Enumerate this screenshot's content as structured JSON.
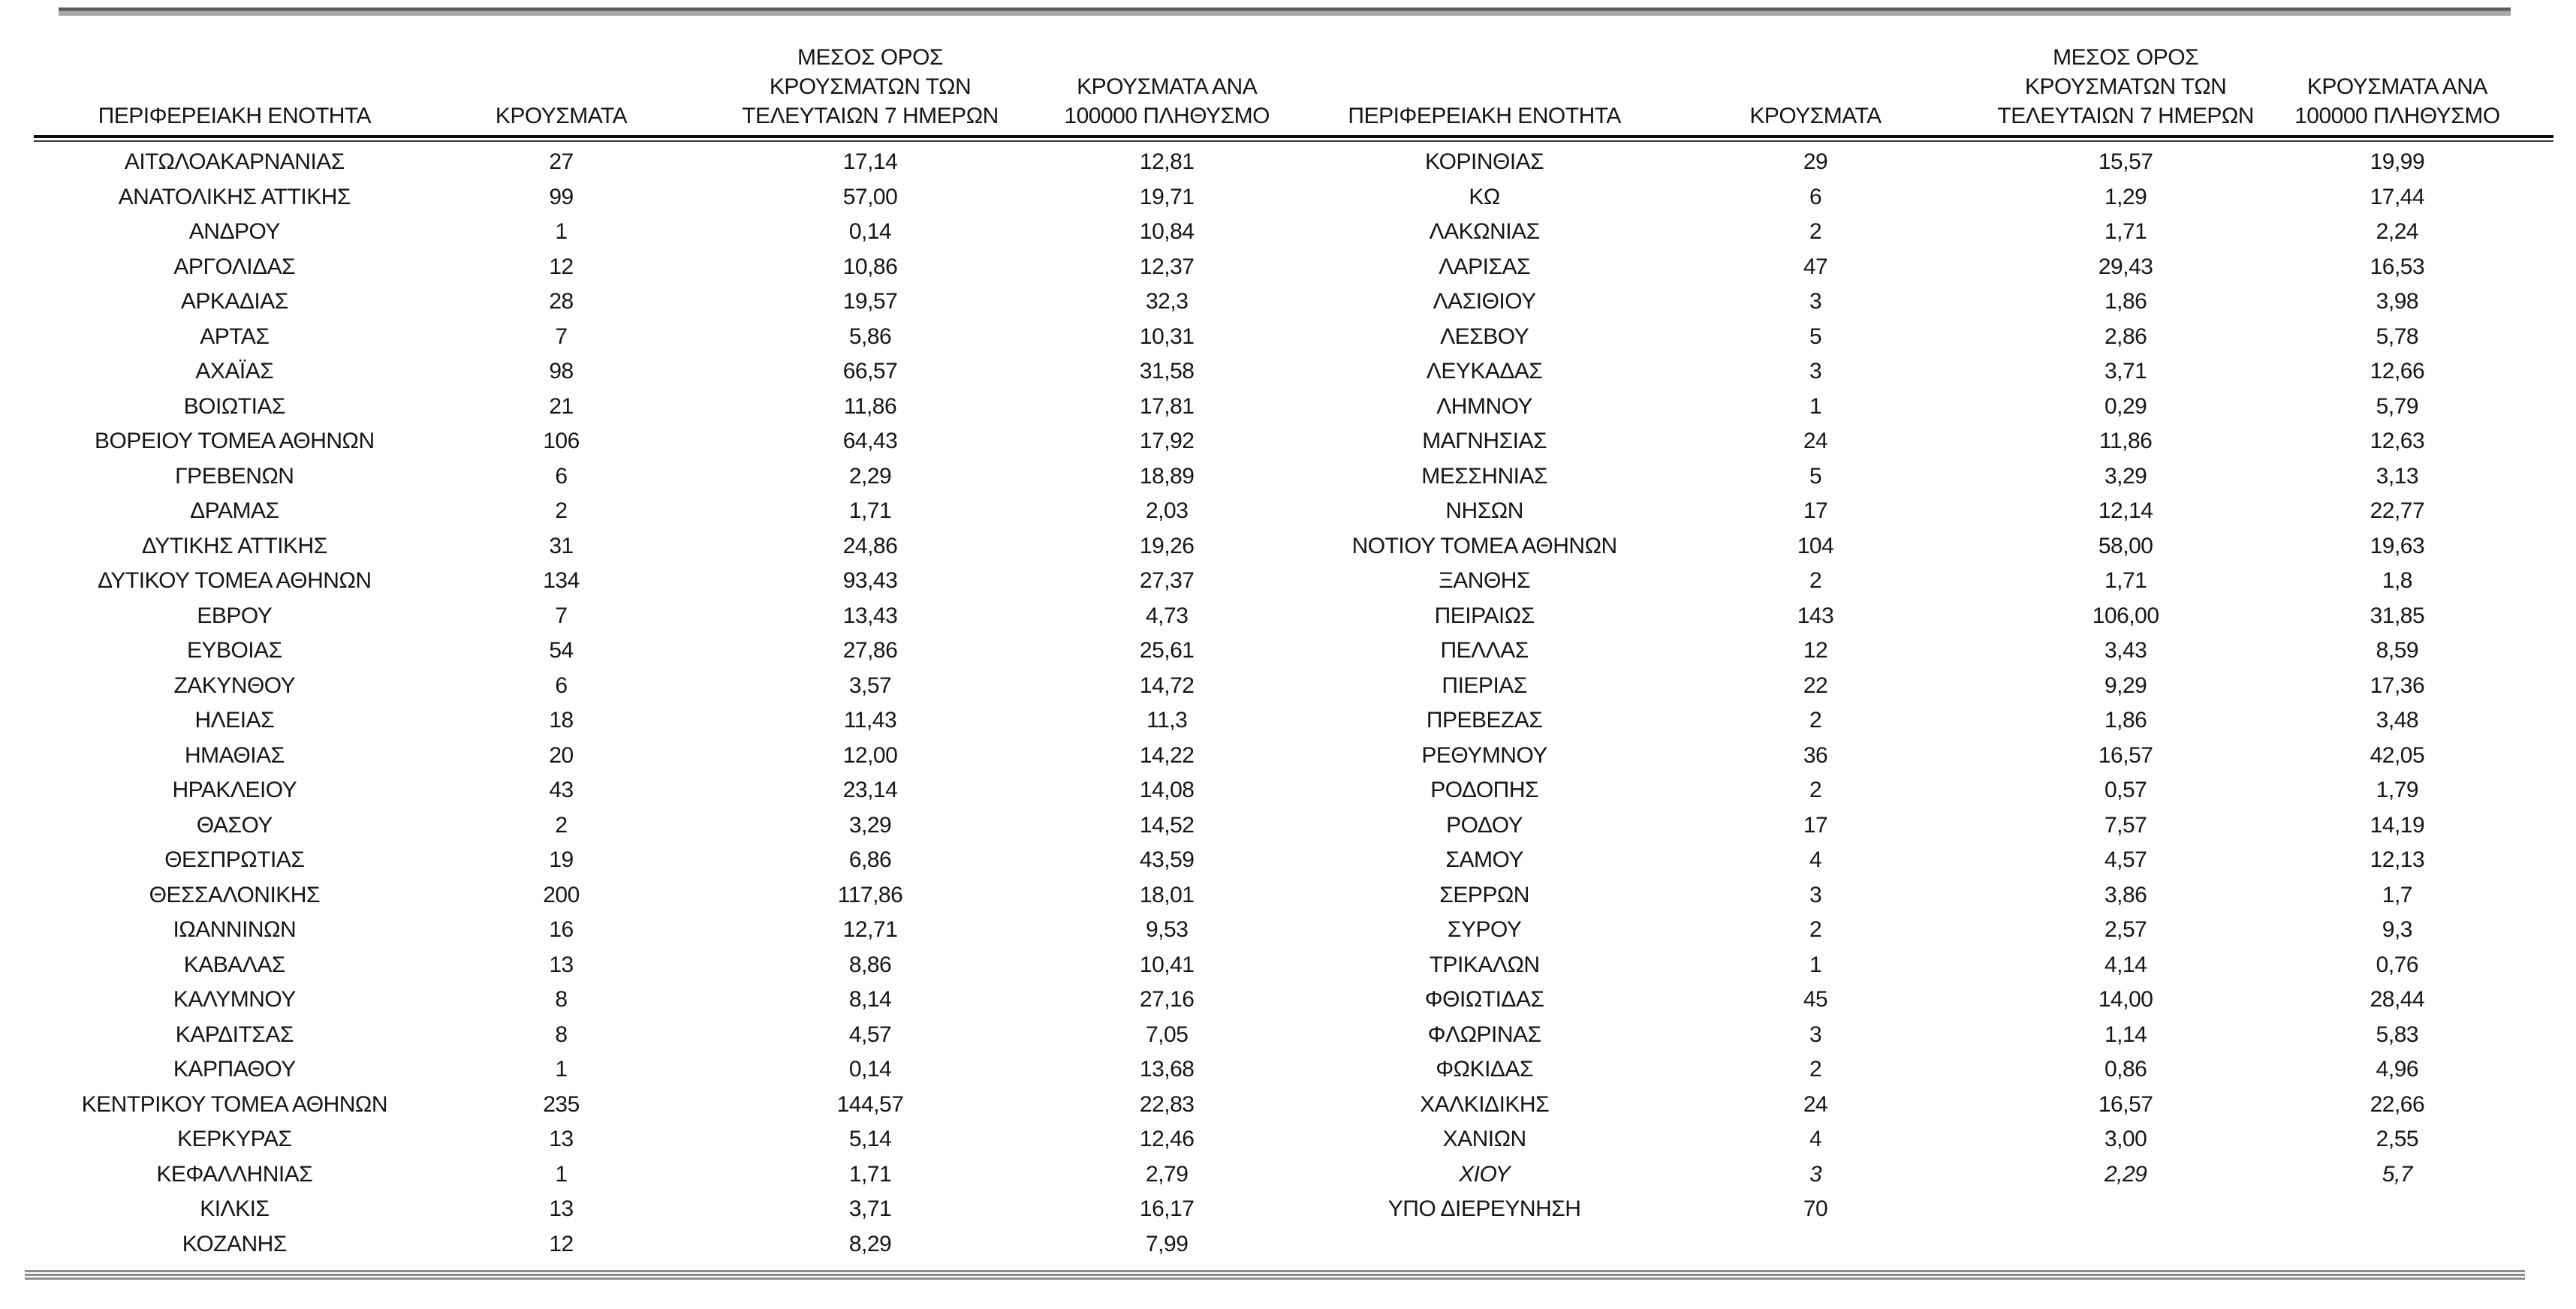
{
  "page": {
    "background_color": "#ffffff",
    "text_color": "#161616",
    "rule_gray_color": "#8e8e8e",
    "rule_black_color": "#0d0d0d"
  },
  "table": {
    "headers": {
      "region": "ΠΕΡΙΦΕΡΕΙΑΚΗ ΕΝΟΤΗΤΑ",
      "cases": "ΚΡΟΥΣΜΑΤΑ",
      "avg7_line1": "ΜΕΣΟΣ ΟΡΟΣ",
      "avg7_line2": "ΚΡΟΥΣΜΑΤΩΝ ΤΩΝ",
      "avg7_line3": "ΤΕΛΕΥΤΑΙΩΝ 7 ΗΜΕΡΩΝ",
      "per100k_line1": "ΚΡΟΥΣΜΑΤΑ ΑΝΑ",
      "per100k_line2": "100000 ΠΛΗΘΥΣΜΟ"
    },
    "left_rows": [
      {
        "name": "ΑΙΤΩΛΟΑΚΑΡΝΑΝΙΑΣ",
        "cases": "27",
        "avg7": "17,14",
        "per100k": "12,81"
      },
      {
        "name": "ΑΝΑΤΟΛΙΚΗΣ ΑΤΤΙΚΗΣ",
        "cases": "99",
        "avg7": "57,00",
        "per100k": "19,71"
      },
      {
        "name": "ΑΝΔΡΟΥ",
        "cases": "1",
        "avg7": "0,14",
        "per100k": "10,84"
      },
      {
        "name": "ΑΡΓΟΛΙΔΑΣ",
        "cases": "12",
        "avg7": "10,86",
        "per100k": "12,37"
      },
      {
        "name": "ΑΡΚΑΔΙΑΣ",
        "cases": "28",
        "avg7": "19,57",
        "per100k": "32,3"
      },
      {
        "name": "ΑΡΤΑΣ",
        "cases": "7",
        "avg7": "5,86",
        "per100k": "10,31"
      },
      {
        "name": "ΑΧΑΪΑΣ",
        "cases": "98",
        "avg7": "66,57",
        "per100k": "31,58"
      },
      {
        "name": "ΒΟΙΩΤΙΑΣ",
        "cases": "21",
        "avg7": "11,86",
        "per100k": "17,81"
      },
      {
        "name": "ΒΟΡΕΙΟΥ ΤΟΜΕΑ ΑΘΗΝΩΝ",
        "cases": "106",
        "avg7": "64,43",
        "per100k": "17,92"
      },
      {
        "name": "ΓΡΕΒΕΝΩΝ",
        "cases": "6",
        "avg7": "2,29",
        "per100k": "18,89"
      },
      {
        "name": "ΔΡΑΜΑΣ",
        "cases": "2",
        "avg7": "1,71",
        "per100k": "2,03"
      },
      {
        "name": "ΔΥΤΙΚΗΣ ΑΤΤΙΚΗΣ",
        "cases": "31",
        "avg7": "24,86",
        "per100k": "19,26"
      },
      {
        "name": "ΔΥΤΙΚΟΥ ΤΟΜΕΑ ΑΘΗΝΩΝ",
        "cases": "134",
        "avg7": "93,43",
        "per100k": "27,37"
      },
      {
        "name": "ΕΒΡΟΥ",
        "cases": "7",
        "avg7": "13,43",
        "per100k": "4,73"
      },
      {
        "name": "ΕΥΒΟΙΑΣ",
        "cases": "54",
        "avg7": "27,86",
        "per100k": "25,61"
      },
      {
        "name": "ΖΑΚΥΝΘΟΥ",
        "cases": "6",
        "avg7": "3,57",
        "per100k": "14,72"
      },
      {
        "name": "ΗΛΕΙΑΣ",
        "cases": "18",
        "avg7": "11,43",
        "per100k": "11,3"
      },
      {
        "name": "ΗΜΑΘΙΑΣ",
        "cases": "20",
        "avg7": "12,00",
        "per100k": "14,22"
      },
      {
        "name": "ΗΡΑΚΛΕΙΟΥ",
        "cases": "43",
        "avg7": "23,14",
        "per100k": "14,08"
      },
      {
        "name": "ΘΑΣΟΥ",
        "cases": "2",
        "avg7": "3,29",
        "per100k": "14,52"
      },
      {
        "name": "ΘΕΣΠΡΩΤΙΑΣ",
        "cases": "19",
        "avg7": "6,86",
        "per100k": "43,59"
      },
      {
        "name": "ΘΕΣΣΑΛΟΝΙΚΗΣ",
        "cases": "200",
        "avg7": "117,86",
        "per100k": "18,01"
      },
      {
        "name": "ΙΩΑΝΝΙΝΩΝ",
        "cases": "16",
        "avg7": "12,71",
        "per100k": "9,53"
      },
      {
        "name": "ΚΑΒΑΛΑΣ",
        "cases": "13",
        "avg7": "8,86",
        "per100k": "10,41"
      },
      {
        "name": "ΚΑΛΥΜΝΟΥ",
        "cases": "8",
        "avg7": "8,14",
        "per100k": "27,16"
      },
      {
        "name": "ΚΑΡΔΙΤΣΑΣ",
        "cases": "8",
        "avg7": "4,57",
        "per100k": "7,05"
      },
      {
        "name": "ΚΑΡΠΑΘΟΥ",
        "cases": "1",
        "avg7": "0,14",
        "per100k": "13,68"
      },
      {
        "name": "ΚΕΝΤΡΙΚΟΥ ΤΟΜΕΑ ΑΘΗΝΩΝ",
        "cases": "235",
        "avg7": "144,57",
        "per100k": "22,83"
      },
      {
        "name": "ΚΕΡΚΥΡΑΣ",
        "cases": "13",
        "avg7": "5,14",
        "per100k": "12,46"
      },
      {
        "name": "ΚΕΦΑΛΛΗΝΙΑΣ",
        "cases": "1",
        "avg7": "1,71",
        "per100k": "2,79"
      },
      {
        "name": "ΚΙΛΚΙΣ",
        "cases": "13",
        "avg7": "3,71",
        "per100k": "16,17"
      },
      {
        "name": "ΚΟΖΑΝΗΣ",
        "cases": "12",
        "avg7": "8,29",
        "per100k": "7,99"
      }
    ],
    "right_rows": [
      {
        "name": "ΚΟΡΙΝΘΙΑΣ",
        "cases": "29",
        "avg7": "15,57",
        "per100k": "19,99"
      },
      {
        "name": "ΚΩ",
        "cases": "6",
        "avg7": "1,29",
        "per100k": "17,44"
      },
      {
        "name": "ΛΑΚΩΝΙΑΣ",
        "cases": "2",
        "avg7": "1,71",
        "per100k": "2,24"
      },
      {
        "name": "ΛΑΡΙΣΑΣ",
        "cases": "47",
        "avg7": "29,43",
        "per100k": "16,53"
      },
      {
        "name": "ΛΑΣΙΘΙΟΥ",
        "cases": "3",
        "avg7": "1,86",
        "per100k": "3,98"
      },
      {
        "name": "ΛΕΣΒΟΥ",
        "cases": "5",
        "avg7": "2,86",
        "per100k": "5,78"
      },
      {
        "name": "ΛΕΥΚΑΔΑΣ",
        "cases": "3",
        "avg7": "3,71",
        "per100k": "12,66"
      },
      {
        "name": "ΛΗΜΝΟΥ",
        "cases": "1",
        "avg7": "0,29",
        "per100k": "5,79"
      },
      {
        "name": "ΜΑΓΝΗΣΙΑΣ",
        "cases": "24",
        "avg7": "11,86",
        "per100k": "12,63"
      },
      {
        "name": "ΜΕΣΣΗΝΙΑΣ",
        "cases": "5",
        "avg7": "3,29",
        "per100k": "3,13"
      },
      {
        "name": "ΝΗΣΩΝ",
        "cases": "17",
        "avg7": "12,14",
        "per100k": "22,77"
      },
      {
        "name": "ΝΟΤΙΟΥ ΤΟΜΕΑ ΑΘΗΝΩΝ",
        "cases": "104",
        "avg7": "58,00",
        "per100k": "19,63"
      },
      {
        "name": "ΞΑΝΘΗΣ",
        "cases": "2",
        "avg7": "1,71",
        "per100k": "1,8"
      },
      {
        "name": "ΠΕΙΡΑΙΩΣ",
        "cases": "143",
        "avg7": "106,00",
        "per100k": "31,85"
      },
      {
        "name": "ΠΕΛΛΑΣ",
        "cases": "12",
        "avg7": "3,43",
        "per100k": "8,59"
      },
      {
        "name": "ΠΙΕΡΙΑΣ",
        "cases": "22",
        "avg7": "9,29",
        "per100k": "17,36"
      },
      {
        "name": "ΠΡΕΒΕΖΑΣ",
        "cases": "2",
        "avg7": "1,86",
        "per100k": "3,48"
      },
      {
        "name": "ΡΕΘΥΜΝΟΥ",
        "cases": "36",
        "avg7": "16,57",
        "per100k": "42,05"
      },
      {
        "name": "ΡΟΔΟΠΗΣ",
        "cases": "2",
        "avg7": "0,57",
        "per100k": "1,79"
      },
      {
        "name": "ΡΟΔΟΥ",
        "cases": "17",
        "avg7": "7,57",
        "per100k": "14,19"
      },
      {
        "name": "ΣΑΜΟΥ",
        "cases": "4",
        "avg7": "4,57",
        "per100k": "12,13"
      },
      {
        "name": "ΣΕΡΡΩΝ",
        "cases": "3",
        "avg7": "3,86",
        "per100k": "1,7"
      },
      {
        "name": "ΣΥΡΟΥ",
        "cases": "2",
        "avg7": "2,57",
        "per100k": "9,3"
      },
      {
        "name": "ΤΡΙΚΑΛΩΝ",
        "cases": "1",
        "avg7": "4,14",
        "per100k": "0,76"
      },
      {
        "name": "ΦΘΙΩΤΙΔΑΣ",
        "cases": "45",
        "avg7": "14,00",
        "per100k": "28,44"
      },
      {
        "name": "ΦΛΩΡΙΝΑΣ",
        "cases": "3",
        "avg7": "1,14",
        "per100k": "5,83"
      },
      {
        "name": "ΦΩΚΙΔΑΣ",
        "cases": "2",
        "avg7": "0,86",
        "per100k": "4,96"
      },
      {
        "name": "ΧΑΛΚΙΔΙΚΗΣ",
        "cases": "24",
        "avg7": "16,57",
        "per100k": "22,66"
      },
      {
        "name": "ΧΑΝΙΩΝ",
        "cases": "4",
        "avg7": "3,00",
        "per100k": "2,55"
      },
      {
        "name": "ΧΙΟΥ",
        "cases": "3",
        "avg7": "2,29",
        "per100k": "5,7",
        "italic": true
      },
      {
        "name": "ΥΠΟ ΔΙΕΡΕΥΝΗΣΗ",
        "cases": "70",
        "avg7": "",
        "per100k": ""
      }
    ]
  }
}
